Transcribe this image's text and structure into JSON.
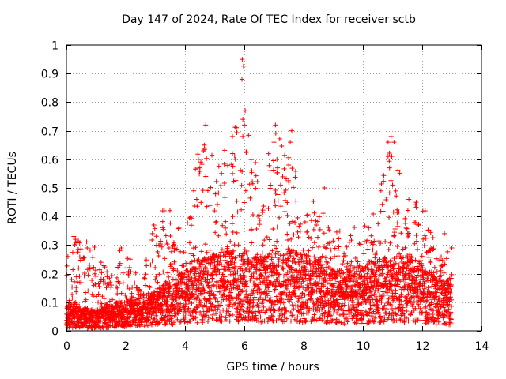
{
  "chart_data": {
    "type": "scatter",
    "title": "Day 147 of 2024, Rate Of TEC Index for receiver sctb",
    "xlabel": "GPS time / hours",
    "ylabel": "ROTI / TECUs",
    "xlim": [
      0,
      14
    ],
    "ylim": [
      0,
      1
    ],
    "xticks": [
      0,
      2,
      4,
      6,
      8,
      10,
      12,
      14
    ],
    "yticks": [
      0,
      0.1,
      0.2,
      0.3,
      0.4,
      0.5,
      0.6,
      0.7,
      0.8,
      0.9,
      1
    ],
    "grid": true,
    "marker": "+",
    "color": "#ff0000",
    "series": [
      {
        "name": "ROTI",
        "envelope_x": [
          0,
          0.5,
          1,
          1.5,
          2,
          2.5,
          3,
          3.5,
          4,
          4.5,
          5,
          5.5,
          6,
          6.5,
          7,
          7.5,
          8,
          8.5,
          9,
          9.5,
          10,
          10.5,
          11,
          11.5,
          12,
          12.5,
          13
        ],
        "envelope_median": [
          0.06,
          0.05,
          0.04,
          0.05,
          0.06,
          0.07,
          0.08,
          0.1,
          0.12,
          0.14,
          0.15,
          0.16,
          0.16,
          0.15,
          0.15,
          0.16,
          0.15,
          0.14,
          0.12,
          0.12,
          0.13,
          0.14,
          0.15,
          0.15,
          0.13,
          0.1,
          0.1
        ],
        "envelope_max": [
          0.27,
          0.33,
          0.29,
          0.2,
          0.29,
          0.18,
          0.37,
          0.43,
          0.32,
          0.72,
          0.65,
          0.68,
          0.95,
          0.48,
          0.72,
          0.7,
          0.4,
          0.5,
          0.35,
          0.38,
          0.38,
          0.46,
          0.68,
          0.46,
          0.43,
          0.3,
          0.29
        ],
        "highlights": [
          {
            "x": 5.93,
            "y": 0.95
          },
          {
            "x": 5.92,
            "y": 0.88
          },
          {
            "x": 6.03,
            "y": 0.77
          },
          {
            "x": 5.95,
            "y": 0.74
          },
          {
            "x": 6.0,
            "y": 0.72
          },
          {
            "x": 4.7,
            "y": 0.72
          },
          {
            "x": 7.05,
            "y": 0.72
          },
          {
            "x": 7.6,
            "y": 0.7
          },
          {
            "x": 5.95,
            "y": 0.68
          },
          {
            "x": 5.6,
            "y": 0.68
          },
          {
            "x": 10.95,
            "y": 0.68
          },
          {
            "x": 11.05,
            "y": 0.66
          },
          {
            "x": 10.85,
            "y": 0.66
          },
          {
            "x": 7.0,
            "y": 0.66
          },
          {
            "x": 7.55,
            "y": 0.66
          },
          {
            "x": 4.65,
            "y": 0.65
          },
          {
            "x": 4.62,
            "y": 0.63
          },
          {
            "x": 5.6,
            "y": 0.62
          },
          {
            "x": 4.45,
            "y": 0.6
          },
          {
            "x": 10.85,
            "y": 0.61
          },
          {
            "x": 5.7,
            "y": 0.6
          },
          {
            "x": 7.1,
            "y": 0.6
          },
          {
            "x": 4.5,
            "y": 0.57
          },
          {
            "x": 10.9,
            "y": 0.57
          },
          {
            "x": 7.5,
            "y": 0.58
          },
          {
            "x": 6.25,
            "y": 0.56
          },
          {
            "x": 5.6,
            "y": 0.55
          },
          {
            "x": 4.7,
            "y": 0.54
          },
          {
            "x": 11.0,
            "y": 0.51
          },
          {
            "x": 8.7,
            "y": 0.5
          },
          {
            "x": 6.05,
            "y": 0.49
          },
          {
            "x": 7.5,
            "y": 0.52
          },
          {
            "x": 3.25,
            "y": 0.42
          },
          {
            "x": 3.3,
            "y": 0.42
          },
          {
            "x": 12.1,
            "y": 0.42
          },
          {
            "x": 11.55,
            "y": 0.46
          },
          {
            "x": 11.8,
            "y": 0.45
          },
          {
            "x": 0.25,
            "y": 0.33
          },
          {
            "x": 0.3,
            "y": 0.32
          },
          {
            "x": 0.7,
            "y": 0.29
          },
          {
            "x": 1.8,
            "y": 0.28
          },
          {
            "x": 1.85,
            "y": 0.29
          },
          {
            "x": 12.75,
            "y": 0.34
          },
          {
            "x": 12.3,
            "y": 0.29
          },
          {
            "x": 13.0,
            "y": 0.29
          },
          {
            "x": 2.95,
            "y": 0.37
          },
          {
            "x": 2.9,
            "y": 0.34
          },
          {
            "x": 0.05,
            "y": 0.26
          }
        ]
      }
    ]
  }
}
